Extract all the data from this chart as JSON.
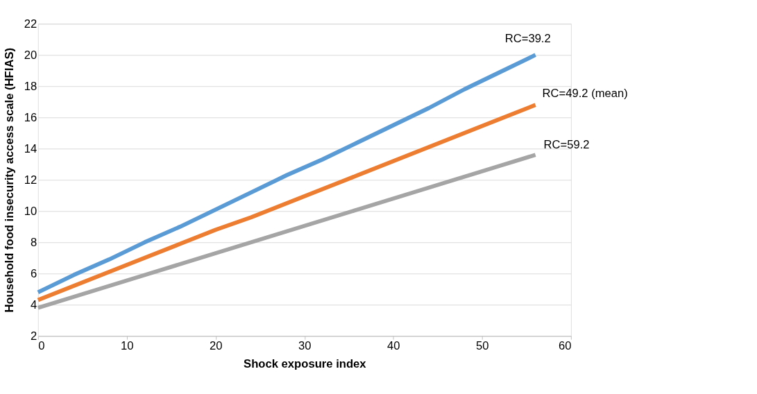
{
  "chart_data": {
    "type": "line",
    "xlabel": "Shock exposure index",
    "ylabel": "Household food insecurity access scale (HFIAS)",
    "x": [
      0,
      4,
      8,
      12,
      16,
      20,
      24,
      28,
      32,
      36,
      40,
      44,
      48,
      52,
      56
    ],
    "series": [
      {
        "name": "RC=39.2",
        "color": "#5b9bd5",
        "values": [
          4.8,
          5.9,
          6.9,
          8.0,
          9.0,
          10.1,
          11.2,
          12.3,
          13.3,
          14.4,
          15.5,
          16.6,
          17.8,
          18.9,
          20.0
        ]
      },
      {
        "name": "RC=49.2 (mean)",
        "color": "#ed7d31",
        "values": [
          4.3,
          5.2,
          6.1,
          7.0,
          7.9,
          8.8,
          9.6,
          10.5,
          11.4,
          12.3,
          13.2,
          14.1,
          15.0,
          15.9,
          16.8
        ]
      },
      {
        "name": "RC=59.2",
        "color": "#a5a5a5",
        "values": [
          3.8,
          4.5,
          5.2,
          5.9,
          6.6,
          7.3,
          8.0,
          8.7,
          9.4,
          10.1,
          10.8,
          11.5,
          12.2,
          12.9,
          13.6
        ]
      }
    ],
    "xlim": [
      0,
      60
    ],
    "xticks": [
      0,
      10,
      20,
      30,
      40,
      50,
      60
    ],
    "ylim": [
      2,
      22
    ],
    "yticks": [
      2,
      4,
      6,
      8,
      10,
      12,
      14,
      16,
      18,
      20,
      22
    ],
    "grid": "y",
    "legend": false,
    "marker": "none",
    "line_style": "solid"
  }
}
